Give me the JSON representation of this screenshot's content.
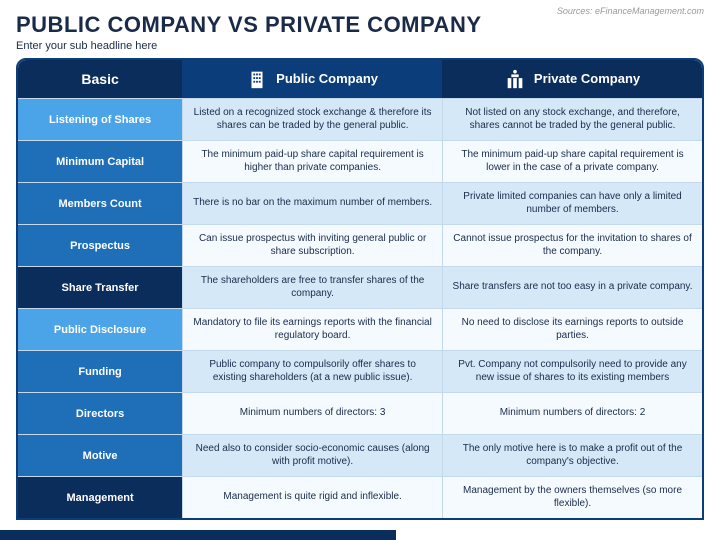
{
  "source": "Sources: eFinanceManagement.com",
  "title": "PUBLIC COMPANY VS PRIVATE COMPANY",
  "subtitle": "Enter your sub headline here",
  "header": {
    "basic": "Basic",
    "public": "Public Company",
    "private": "Private Company"
  },
  "colors": {
    "border": "#0a3d7a",
    "hdr_c1": "#0a2d5c",
    "hdr_c2": "#0a3d7a",
    "hdr_c3": "#0a2d5c",
    "lbl_light": "#4ba3e8",
    "lbl_med": "#1e6fb8",
    "lbl_dark": "#0a2d5c",
    "cell_odd": "#d4e8f7",
    "cell_even": "#f5faff",
    "title": "#1a2b4a",
    "source": "#999999"
  },
  "rows": [
    {
      "shade": "light",
      "label": "Listening of Shares",
      "pub": "Listed on a recognized stock exchange & therefore its shares can be traded by the general public.",
      "pri": "Not listed on any stock exchange, and therefore, shares cannot be traded by the general public."
    },
    {
      "shade": "med",
      "label": "Minimum Capital",
      "pub": "The minimum paid-up share capital requirement is higher than private companies.",
      "pri": "The minimum paid-up share capital requirement is lower in the case of a private company."
    },
    {
      "shade": "med",
      "label": "Members Count",
      "pub": "There is no bar on the maximum number of members.",
      "pri": "Private limited companies can have only a limited number of members."
    },
    {
      "shade": "med",
      "label": "Prospectus",
      "pub": "Can issue prospectus with inviting general public or share subscription.",
      "pri": "Cannot issue prospectus for the invitation to shares of the company."
    },
    {
      "shade": "dark",
      "label": "Share Transfer",
      "pub": "The shareholders are free to transfer shares of the company.",
      "pri": "Share transfers are not too easy in a private company."
    },
    {
      "shade": "light",
      "label": "Public Disclosure",
      "pub": "Mandatory to file its earnings reports with the financial regulatory board.",
      "pri": "No need to disclose its earnings reports to outside parties."
    },
    {
      "shade": "med",
      "label": "Funding",
      "pub": "Public company to compulsorily offer shares to existing shareholders (at a new public issue).",
      "pri": "Pvt. Company not compulsorily need to provide any new issue of shares to its existing members"
    },
    {
      "shade": "med",
      "label": "Directors",
      "pub": "Minimum numbers of directors: 3",
      "pri": "Minimum numbers of directors: 2"
    },
    {
      "shade": "med",
      "label": "Motive",
      "pub": "Need also to consider socio-economic causes (along with profit motive).",
      "pri": "The only motive here is to make a profit out of the company's objective."
    },
    {
      "shade": "dark",
      "label": "Management",
      "pub": "Management is quite rigid and inflexible.",
      "pri": "Management by the owners themselves (so more flexible)."
    }
  ]
}
